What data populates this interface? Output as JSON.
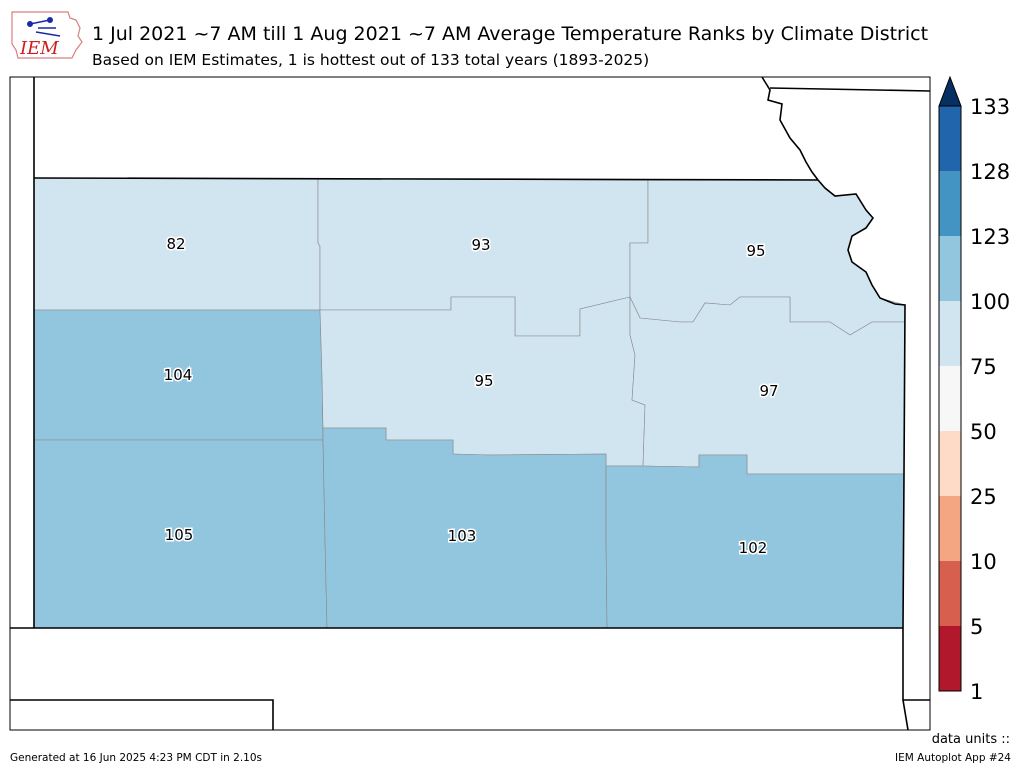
{
  "header": {
    "title": "1 Jul 2021 ~7 AM till 1 Aug 2021 ~7 AM Average Temperature Ranks by Climate District",
    "subtitle": "Based on IEM Estimates, 1 is hottest out of 133 total years (1893-2025)"
  },
  "logo": {
    "text": "IEM",
    "color": "#cc1f1f"
  },
  "map": {
    "region": "Kansas",
    "districts": [
      {
        "name": "Northwest",
        "rank": "82",
        "color": "#d1e5f0"
      },
      {
        "name": "North Central",
        "rank": "93",
        "color": "#d1e5f0"
      },
      {
        "name": "Northeast",
        "rank": "95",
        "color": "#d1e5f0"
      },
      {
        "name": "West Central",
        "rank": "104",
        "color": "#92c5de"
      },
      {
        "name": "Central",
        "rank": "95",
        "color": "#d1e5f0"
      },
      {
        "name": "East Central",
        "rank": "97",
        "color": "#d1e5f0"
      },
      {
        "name": "Southwest",
        "rank": "105",
        "color": "#92c5de"
      },
      {
        "name": "South Central",
        "rank": "103",
        "color": "#92c5de"
      },
      {
        "name": "Southeast",
        "rank": "102",
        "color": "#92c5de"
      }
    ]
  },
  "colorbar": {
    "bins": [
      {
        "label": "1",
        "color": "#b2182b"
      },
      {
        "label": "5",
        "color": "#d6604d"
      },
      {
        "label": "10",
        "color": "#f4a582"
      },
      {
        "label": "25",
        "color": "#fddbc7"
      },
      {
        "label": "50",
        "color": "#f7f7f7"
      },
      {
        "label": "75",
        "color": "#d1e5f0"
      },
      {
        "label": "100",
        "color": "#92c5de"
      },
      {
        "label": "123",
        "color": "#4393c3"
      },
      {
        "label": "128",
        "color": "#2166ac"
      },
      {
        "label": "133",
        "color": ""
      }
    ],
    "extend_color": "#053061"
  },
  "footer": {
    "generated": "Generated at 16 Jun 2025 4:23 PM CDT in 2.10s",
    "app": "IEM Autoplot App #24",
    "units": "data units ::"
  }
}
